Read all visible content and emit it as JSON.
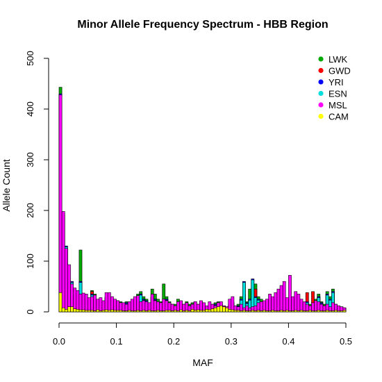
{
  "chart_data": {
    "type": "bar",
    "title": "Minor Allele Frequency Spectrum - HBB Region",
    "xlabel": "MAF",
    "ylabel": "Allele Count",
    "xlim": [
      0,
      0.5
    ],
    "ylim": [
      0,
      500
    ],
    "xticks": [
      "0.0",
      "0.1",
      "0.2",
      "0.3",
      "0.4",
      "0.5"
    ],
    "yticks": [
      "0",
      "100",
      "200",
      "300",
      "400",
      "500"
    ],
    "bin_width": 0.005,
    "legend_position": "top-right",
    "grid": false,
    "series": [
      {
        "name": "LWK",
        "color": "#00aa00",
        "values": [
          443,
          120,
          60,
          48,
          40,
          30,
          25,
          122,
          30,
          28,
          20,
          42,
          35,
          25,
          20,
          18,
          30,
          25,
          20,
          18,
          22,
          20,
          18,
          20,
          15,
          20,
          25,
          35,
          40,
          30,
          25,
          18,
          45,
          35,
          25,
          20,
          55,
          30,
          20,
          15,
          15,
          25,
          20,
          15,
          20,
          15,
          18,
          20,
          15,
          20,
          15,
          10,
          12,
          15,
          18,
          20,
          15,
          12,
          10,
          15,
          20,
          12,
          15,
          30,
          35,
          20,
          45,
          48,
          55,
          30,
          25,
          20,
          15,
          12,
          10,
          15,
          12,
          10,
          8,
          15,
          12,
          10,
          15,
          10,
          12,
          8,
          20,
          15,
          12,
          25,
          35,
          20,
          15,
          40,
          30,
          45,
          15,
          12,
          10,
          8
        ]
      },
      {
        "name": "GWD",
        "color": "#ff0000",
        "values": [
          420,
          130,
          55,
          45,
          35,
          28,
          22,
          60,
          28,
          25,
          18,
          40,
          30,
          22,
          18,
          15,
          28,
          22,
          18,
          15,
          20,
          18,
          15,
          18,
          12,
          18,
          22,
          25,
          35,
          25,
          22,
          15,
          30,
          25,
          20,
          18,
          20,
          25,
          15,
          12,
          12,
          20,
          18,
          12,
          18,
          12,
          15,
          18,
          12,
          18,
          12,
          8,
          10,
          12,
          15,
          18,
          12,
          10,
          8,
          12,
          18,
          10,
          12,
          25,
          30,
          18,
          25,
          30,
          45,
          25,
          20,
          18,
          12,
          10,
          8,
          12,
          10,
          8,
          6,
          12,
          10,
          8,
          12,
          8,
          10,
          6,
          38,
          12,
          40,
          22,
          30,
          18,
          12,
          35,
          25,
          40,
          12,
          10,
          8,
          6
        ]
      },
      {
        "name": "YRI",
        "color": "#0000ff",
        "values": [
          430,
          195,
          130,
          62,
          60,
          30,
          25,
          60,
          30,
          28,
          20,
          35,
          30,
          22,
          18,
          15,
          28,
          24,
          18,
          15,
          20,
          18,
          15,
          18,
          12,
          18,
          22,
          25,
          35,
          25,
          22,
          15,
          30,
          25,
          20,
          18,
          20,
          25,
          15,
          12,
          12,
          20,
          18,
          12,
          18,
          12,
          15,
          18,
          12,
          18,
          12,
          8,
          10,
          12,
          15,
          18,
          12,
          10,
          8,
          12,
          18,
          10,
          12,
          25,
          60,
          18,
          25,
          65,
          30,
          25,
          20,
          18,
          12,
          10,
          8,
          12,
          10,
          8,
          6,
          12,
          10,
          8,
          12,
          8,
          10,
          6,
          20,
          12,
          10,
          22,
          30,
          18,
          12,
          35,
          25,
          40,
          12,
          10,
          8,
          6
        ]
      },
      {
        "name": "ESN",
        "color": "#00dddd",
        "values": [
          425,
          190,
          128,
          60,
          58,
          28,
          22,
          58,
          28,
          26,
          18,
          33,
          28,
          20,
          16,
          13,
          26,
          22,
          16,
          13,
          18,
          16,
          13,
          16,
          10,
          16,
          20,
          23,
          33,
          23,
          20,
          13,
          28,
          23,
          18,
          16,
          18,
          23,
          13,
          10,
          10,
          18,
          16,
          10,
          16,
          10,
          13,
          16,
          10,
          16,
          10,
          6,
          8,
          10,
          13,
          16,
          10,
          8,
          6,
          10,
          16,
          8,
          10,
          23,
          58,
          16,
          23,
          63,
          28,
          23,
          18,
          16,
          10,
          8,
          6,
          10,
          8,
          6,
          4,
          10,
          8,
          6,
          10,
          6,
          8,
          4,
          18,
          10,
          8,
          20,
          28,
          16,
          10,
          33,
          23,
          38,
          10,
          8,
          6,
          4
        ]
      },
      {
        "name": "MSL",
        "color": "#ff00ff",
        "values": [
          428,
          198,
          125,
          93,
          55,
          47,
          42,
          35,
          37,
          35,
          28,
          30,
          33,
          25,
          28,
          22,
          38,
          38,
          30,
          25,
          22,
          18,
          18,
          15,
          20,
          25,
          30,
          32,
          20,
          22,
          20,
          18,
          35,
          22,
          20,
          18,
          25,
          22,
          18,
          15,
          12,
          20,
          22,
          15,
          18,
          12,
          15,
          20,
          15,
          22,
          18,
          12,
          20,
          15,
          12,
          18,
          20,
          12,
          10,
          25,
          30,
          12,
          10,
          15,
          8,
          12,
          8,
          10,
          12,
          18,
          20,
          22,
          25,
          35,
          30,
          38,
          45,
          52,
          60,
          28,
          72,
          30,
          40,
          35,
          25,
          20,
          15,
          12,
          18,
          22,
          20,
          15,
          12,
          15,
          10,
          18,
          15,
          12,
          10,
          8
        ]
      },
      {
        "name": "CAM",
        "color": "#ffff00",
        "values": [
          38,
          8,
          5,
          10,
          10,
          6,
          5,
          4,
          4,
          3,
          3,
          3,
          2,
          4,
          2,
          3,
          4,
          3,
          4,
          3,
          3,
          3,
          2,
          2,
          3,
          2,
          2,
          3,
          2,
          3,
          2,
          3,
          2,
          2,
          3,
          2,
          2,
          3,
          3,
          2,
          3,
          2,
          4,
          2,
          3,
          2,
          5,
          3,
          4,
          3,
          3,
          5,
          4,
          6,
          8,
          10,
          12,
          10,
          8,
          5,
          4,
          3,
          3,
          2,
          3,
          2,
          2,
          3,
          2,
          3,
          2,
          3,
          2,
          2,
          3,
          2,
          2,
          3,
          2,
          3,
          2,
          2,
          3,
          2,
          3,
          2,
          2,
          3,
          2,
          2,
          3,
          2,
          2,
          3,
          2,
          2,
          3,
          2,
          2,
          3
        ]
      }
    ]
  }
}
